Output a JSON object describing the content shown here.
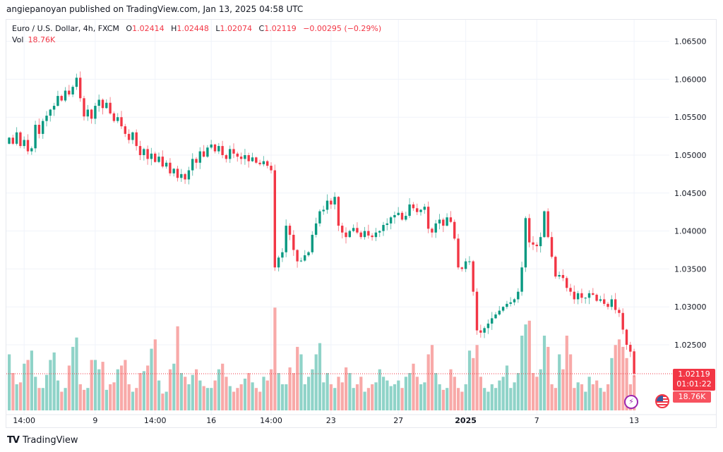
{
  "header": {
    "published": "angiepanoyan published on TradingView.com, Jan 13, 2025 04:58 UTC"
  },
  "legend": {
    "symbol": "Euro / U.S. Dollar, 4h, FXCM",
    "o_label": "O",
    "o": "1.02414",
    "h_label": "H",
    "h": "1.02448",
    "l_label": "L",
    "l": "1.02074",
    "c_label": "C",
    "c": "1.02119",
    "change": "−0.00295 (−0.29%)",
    "vol_label": "Vol",
    "vol": "18.76K"
  },
  "price_label": {
    "price": "1.02119",
    "countdown": "01:01:22",
    "volume": "18.76K"
  },
  "footer": {
    "logo_text": "TradingView"
  },
  "colors": {
    "up": "#089981",
    "down": "#f23645",
    "vol_up": "#8fd3c8",
    "vol_down": "#f8a9a8"
  },
  "chart_data": {
    "type": "candlestick",
    "title": "Euro / U.S. Dollar, 4h, FXCM",
    "y_ticks": [
      "1.06500",
      "1.06000",
      "1.05500",
      "1.05000",
      "1.04500",
      "1.04000",
      "1.03500",
      "1.03000",
      "1.02500"
    ],
    "ylim": [
      1.019,
      1.068
    ],
    "x_ticks": [
      {
        "label": "14:00",
        "index": 4
      },
      {
        "label": "9",
        "index": 23
      },
      {
        "label": "14:00",
        "index": 39
      },
      {
        "label": "16",
        "index": 54
      },
      {
        "label": "14:00",
        "index": 70
      },
      {
        "label": "23",
        "index": 86
      },
      {
        "label": "27",
        "index": 104
      },
      {
        "label": "2025",
        "index": 122,
        "bold": true
      },
      {
        "label": "7",
        "index": 141
      },
      {
        "label": "13",
        "index": 167
      }
    ],
    "first_open": 1.0515,
    "closes": [
      1.0523,
      1.0515,
      1.053,
      1.0512,
      1.052,
      1.0505,
      1.0509,
      1.054,
      1.0528,
      1.0545,
      1.0552,
      1.056,
      1.0565,
      1.0578,
      1.0572,
      1.0585,
      1.058,
      1.059,
      1.0602,
      1.0575,
      1.0551,
      1.056,
      1.0548,
      1.0565,
      1.0573,
      1.0562,
      1.0569,
      1.0555,
      1.0545,
      1.055,
      1.0538,
      1.0528,
      1.052,
      1.053,
      1.0512,
      1.05,
      1.0508,
      1.0495,
      1.0502,
      1.0491,
      1.0498,
      1.0485,
      1.049,
      1.0476,
      1.0482,
      1.047,
      1.0475,
      1.0468,
      1.048,
      1.0495,
      1.049,
      1.0505,
      1.0498,
      1.051,
      1.0514,
      1.0505,
      1.0512,
      1.05,
      1.0495,
      1.0508,
      1.0502,
      1.0498,
      1.0495,
      1.05,
      1.0492,
      1.0497,
      1.049,
      1.0488,
      1.0492,
      1.0486,
      1.048,
      1.0352,
      1.0365,
      1.0372,
      1.0407,
      1.0395,
      1.0375,
      1.036,
      1.0361,
      1.0368,
      1.0372,
      1.0395,
      1.041,
      1.0426,
      1.0428,
      1.044,
      1.0435,
      1.0445,
      1.0407,
      1.0398,
      1.0392,
      1.04,
      1.0404,
      1.0398,
      1.0392,
      1.04,
      1.0394,
      1.0392,
      1.0398,
      1.04,
      1.0408,
      1.041,
      1.0418,
      1.0421,
      1.0424,
      1.0415,
      1.042,
      1.0435,
      1.043,
      1.0425,
      1.0428,
      1.0432,
      1.0403,
      1.0398,
      1.041,
      1.0415,
      1.0407,
      1.0418,
      1.0412,
      1.039,
      1.0352,
      1.035,
      1.036,
      1.036,
      1.032,
      1.0269,
      1.0266,
      1.0272,
      1.0278,
      1.0285,
      1.029,
      1.0295,
      1.03,
      1.0304,
      1.0306,
      1.031,
      1.032,
      1.0352,
      1.0417,
      1.0385,
      1.0382,
      1.038,
      1.0392,
      1.0426,
      1.0392,
      1.0366,
      1.034,
      1.0342,
      1.0338,
      1.0325,
      1.032,
      1.031,
      1.0318,
      1.0312,
      1.0312,
      1.0318,
      1.0316,
      1.0308,
      1.031,
      1.0304,
      1.03,
      1.031,
      1.0296,
      1.0292,
      1.027,
      1.025,
      1.0241,
      1.02119
    ],
    "volumes_k": [
      30,
      20,
      14,
      15,
      25,
      27,
      32,
      18,
      12,
      12,
      19,
      27,
      31,
      16,
      10,
      12,
      24,
      34,
      39,
      14,
      11,
      12,
      27,
      27,
      22,
      26,
      11,
      14,
      15,
      22,
      24,
      27,
      14,
      10,
      12,
      20,
      21,
      24,
      33,
      38,
      16,
      9,
      10,
      22,
      25,
      45,
      20,
      18,
      14,
      19,
      22,
      16,
      13,
      12,
      12,
      16,
      22,
      25,
      18,
      13,
      10,
      12,
      14,
      17,
      20,
      15,
      12,
      10,
      18,
      16,
      22,
      55,
      20,
      14,
      14,
      23,
      20,
      34,
      30,
      14,
      18,
      22,
      30,
      36,
      15,
      20,
      14,
      12,
      18,
      15,
      23,
      20,
      12,
      14,
      18,
      10,
      12,
      14,
      15,
      22,
      18,
      16,
      13,
      14,
      16,
      12,
      18,
      20,
      25,
      18,
      14,
      15,
      30,
      35,
      20,
      14,
      11,
      12,
      22,
      18,
      12,
      10,
      14,
      32,
      28,
      35,
      18,
      12,
      10,
      14,
      12,
      16,
      18,
      24,
      12,
      15,
      20,
      40,
      46,
      48,
      20,
      18,
      22,
      40,
      34,
      14,
      12,
      30,
      22,
      40,
      30,
      12,
      15,
      14,
      10,
      18,
      14,
      16,
      12,
      10,
      14,
      28,
      35,
      38,
      34,
      28,
      14,
      18.76
    ],
    "last_candle": {
      "open": 1.02414,
      "high": 1.02448,
      "low": 1.02074,
      "close": 1.02119
    }
  }
}
